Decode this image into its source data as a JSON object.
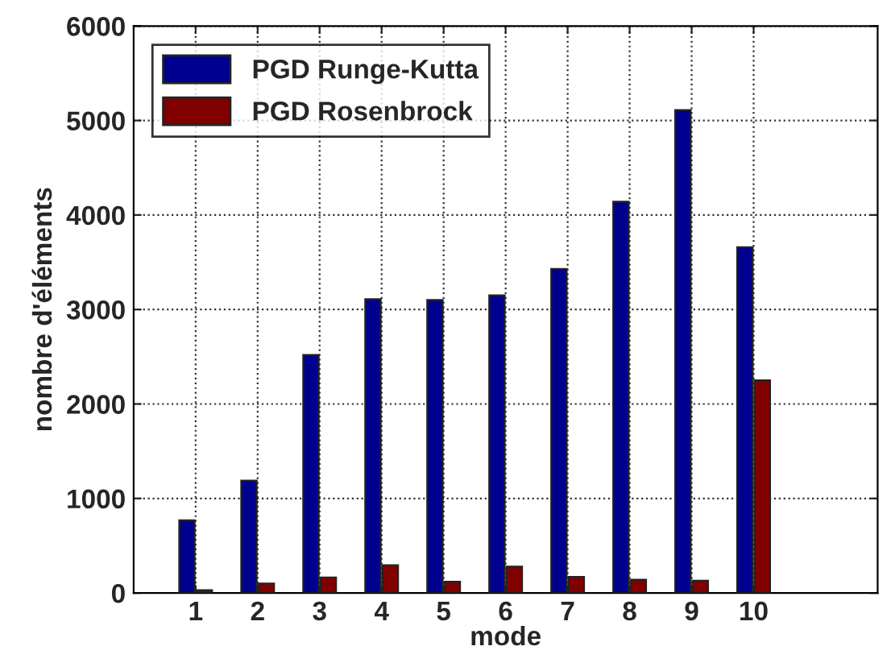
{
  "chart_data": {
    "type": "bar",
    "xlabel": "mode",
    "ylabel": "nombre d'éléments",
    "x": [
      1,
      2,
      3,
      4,
      5,
      6,
      7,
      8,
      9,
      10
    ],
    "series": [
      {
        "name": "PGD Runge-Kutta",
        "color": "#00008f",
        "values": [
          770,
          1190,
          2520,
          3110,
          3100,
          3150,
          3430,
          4140,
          5110,
          3660
        ]
      },
      {
        "name": "PGD Rosenbrock",
        "color": "#800000",
        "values": [
          30,
          100,
          165,
          295,
          120,
          280,
          170,
          140,
          130,
          2250
        ]
      }
    ],
    "xlim": [
      0,
      12
    ],
    "xticks": [
      1,
      2,
      3,
      4,
      5,
      6,
      7,
      8,
      9,
      10
    ],
    "ylim": [
      0,
      6000
    ],
    "yticks": [
      0,
      1000,
      2000,
      3000,
      4000,
      5000,
      6000
    ],
    "grid": true,
    "legend": "top left"
  }
}
